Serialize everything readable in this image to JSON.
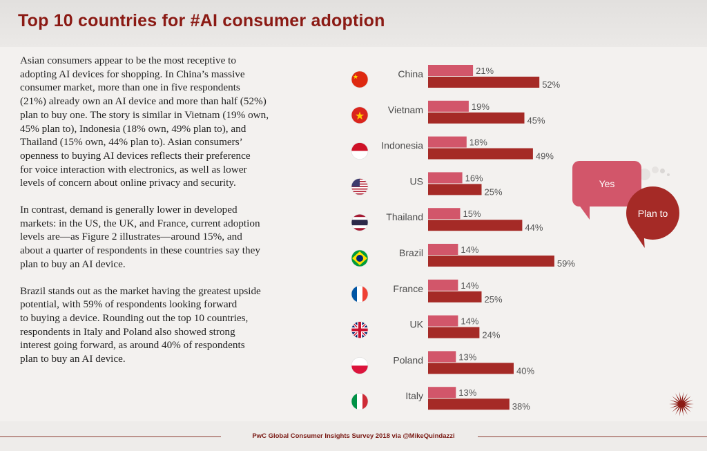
{
  "title": "Top 10 countries for #AI consumer adoption",
  "paragraphs": [
    "Asian consumers appear to be the most receptive to\nadopting AI devices for shopping. In China’s massive\nconsumer market, more than one in five respondents\n(21%) already own an AI device and more than half (52%)\nplan to buy one. The story is similar in Vietnam (19% own,\n45% plan to), Indonesia (18% own, 49% plan to), and\nThailand (15% own, 44% plan to). Asian consumers’\nopenness to buying AI devices reflects their preference\nfor voice interaction with electronics, as well as lower\nlevels of concern about online privacy and security.",
    "In contrast, demand is generally lower in developed\nmarkets: in the US, the UK, and France, current adoption\nlevels are—as Figure 2 illustrates—around 15%, and\nabout a quarter of respondents in these countries say they\nplan to buy an AI device.",
    "Brazil stands out as the market having the greatest upside\npotential, with 59% of respondents looking forward\nto buying a device. Rounding out the top 10 countries,\nrespondents in Italy and Poland also showed strong\ninterest going forward, as around 40% of respondents\nplan to buy an AI device."
  ],
  "legend": {
    "yes": "Yes",
    "plan": "Plan to"
  },
  "footer": "PwC Global Consumer Insights Survey 2018 via @MikeQuindazzi",
  "colors": {
    "yes": "#d2566a",
    "plan": "#a52a26",
    "title": "#8b1a14"
  },
  "chart_data": {
    "type": "bar",
    "orientation": "horizontal",
    "title": "Top 10 countries for #AI consumer adoption",
    "categories": [
      "China",
      "Vietnam",
      "Indonesia",
      "US",
      "Thailand",
      "Brazil",
      "France",
      "UK",
      "Poland",
      "Italy"
    ],
    "flags": [
      "china-flag-icon",
      "vietnam-flag-icon",
      "indonesia-flag-icon",
      "us-flag-icon",
      "thailand-flag-icon",
      "brazil-flag-icon",
      "france-flag-icon",
      "uk-flag-icon",
      "poland-flag-icon",
      "italy-flag-icon"
    ],
    "series": [
      {
        "name": "Yes",
        "values": [
          21,
          19,
          18,
          16,
          15,
          14,
          14,
          14,
          13,
          13
        ],
        "labels": [
          "21%",
          "19%",
          "18%",
          "16%",
          "15%",
          "14%",
          "14%",
          "14%",
          "13%",
          "13%"
        ]
      },
      {
        "name": "Plan to",
        "values": [
          52,
          45,
          49,
          25,
          44,
          59,
          25,
          24,
          40,
          38
        ],
        "labels": [
          "52%",
          "45%",
          "49%",
          "25%",
          "44%",
          "59%",
          "25%",
          "24%",
          "40%",
          "38%"
        ]
      }
    ],
    "xlim": [
      0,
      100
    ],
    "legend_position": "right"
  }
}
